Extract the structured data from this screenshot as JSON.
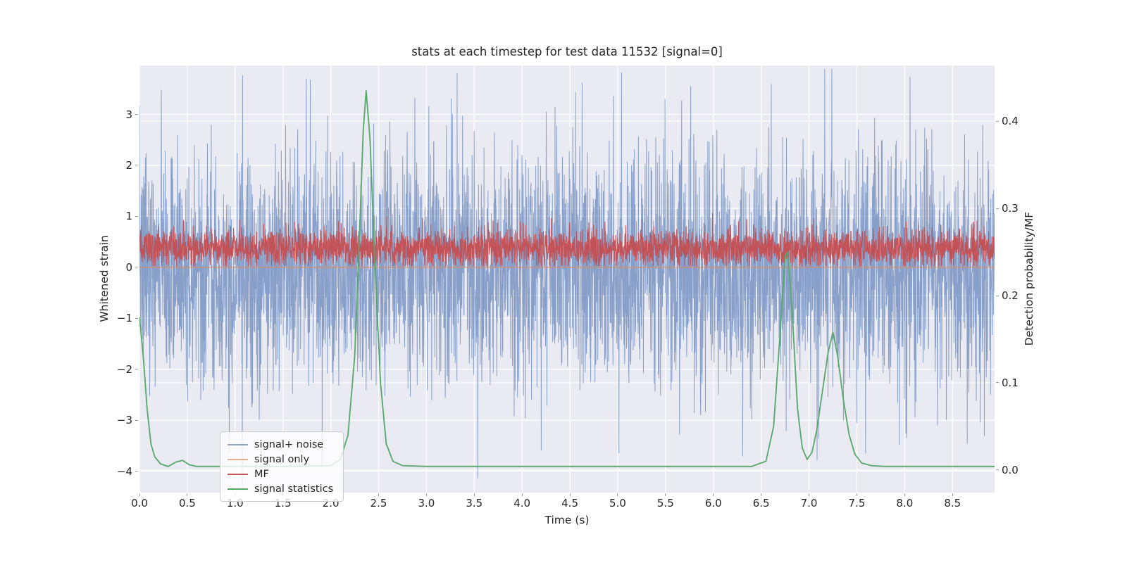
{
  "figure": {
    "background": "#ffffff"
  },
  "chart_data": {
    "type": "line",
    "title": "stats at each timestep for test data 11532 [signal=0]",
    "xlabel": "Time (s)",
    "ylabel_left": "Whitened strain",
    "ylabel_right": "Detection probability/MF",
    "xlim": [
      0,
      8.94
    ],
    "ylim_left": [
      -4.42,
      3.96
    ],
    "ylim_right": [
      -0.026,
      0.464
    ],
    "grid": true,
    "legend_position": "lower left",
    "series": [
      {
        "name": "signal+ noise",
        "color": "#4C72B0",
        "alpha": 0.62,
        "line_width": 1.0,
        "axis": "left",
        "kind": "noise",
        "mean": 0,
        "std": 1.15,
        "n": 3600,
        "seed": 7
      },
      {
        "name": "signal only",
        "color": "#DD8452",
        "alpha": 0.65,
        "line_width": 1.6,
        "axis": "left",
        "kind": "constant",
        "value": 0
      },
      {
        "name": "MF",
        "color": "#C44E52",
        "alpha": 0.95,
        "line_width": 1.1,
        "axis": "left",
        "kind": "noise",
        "mean": 0.38,
        "std": 0.18,
        "clip_min": 0.03,
        "n": 3600,
        "seed": 12
      },
      {
        "name": "signal statistics",
        "color": "#55A868",
        "alpha": 1.0,
        "line_width": 1.8,
        "axis": "right",
        "kind": "points",
        "points": [
          [
            0,
            0.175
          ],
          [
            0.04,
            0.13
          ],
          [
            0.08,
            0.07
          ],
          [
            0.12,
            0.03
          ],
          [
            0.16,
            0.015
          ],
          [
            0.22,
            0.007
          ],
          [
            0.3,
            0.004
          ],
          [
            0.38,
            0.009
          ],
          [
            0.45,
            0.011
          ],
          [
            0.52,
            0.006
          ],
          [
            0.6,
            0.004
          ],
          [
            0.8,
            0.004
          ],
          [
            1.2,
            0.004
          ],
          [
            1.6,
            0.004
          ],
          [
            2.0,
            0.005
          ],
          [
            2.1,
            0.012
          ],
          [
            2.18,
            0.04
          ],
          [
            2.25,
            0.13
          ],
          [
            2.3,
            0.27
          ],
          [
            2.34,
            0.39
          ],
          [
            2.37,
            0.435
          ],
          [
            2.41,
            0.38
          ],
          [
            2.46,
            0.24
          ],
          [
            2.52,
            0.1
          ],
          [
            2.58,
            0.03
          ],
          [
            2.65,
            0.01
          ],
          [
            2.75,
            0.005
          ],
          [
            3.0,
            0.004
          ],
          [
            3.5,
            0.004
          ],
          [
            4.0,
            0.004
          ],
          [
            4.5,
            0.004
          ],
          [
            5.0,
            0.004
          ],
          [
            5.5,
            0.004
          ],
          [
            6.0,
            0.004
          ],
          [
            6.4,
            0.004
          ],
          [
            6.55,
            0.01
          ],
          [
            6.63,
            0.05
          ],
          [
            6.7,
            0.16
          ],
          [
            6.75,
            0.245
          ],
          [
            6.78,
            0.25
          ],
          [
            6.83,
            0.17
          ],
          [
            6.88,
            0.07
          ],
          [
            6.93,
            0.025
          ],
          [
            6.98,
            0.012
          ],
          [
            7.03,
            0.02
          ],
          [
            7.08,
            0.045
          ],
          [
            7.14,
            0.09
          ],
          [
            7.2,
            0.135
          ],
          [
            7.25,
            0.158
          ],
          [
            7.3,
            0.13
          ],
          [
            7.36,
            0.08
          ],
          [
            7.42,
            0.04
          ],
          [
            7.48,
            0.018
          ],
          [
            7.55,
            0.008
          ],
          [
            7.65,
            0.005
          ],
          [
            7.8,
            0.004
          ],
          [
            8.2,
            0.004
          ],
          [
            8.6,
            0.004
          ],
          [
            8.94,
            0.004
          ]
        ]
      }
    ]
  },
  "axes": {
    "background": "#eaeaf2",
    "grid_color": "#ffffff",
    "text_color": "#262626",
    "x_ticks": {
      "values": [
        0,
        0.5,
        1.0,
        1.5,
        2.0,
        2.5,
        3.0,
        3.5,
        4.0,
        4.5,
        5.0,
        5.5,
        6.0,
        6.5,
        7.0,
        7.5,
        8.0,
        8.5
      ],
      "labels": [
        "0.0",
        "0.5",
        "1.0",
        "1.5",
        "2.0",
        "2.5",
        "3.0",
        "3.5",
        "4.0",
        "4.5",
        "5.0",
        "5.5",
        "6.0",
        "6.5",
        "7.0",
        "7.5",
        "8.0",
        "8.5"
      ]
    },
    "y_ticks_left": {
      "values": [
        -4,
        -3,
        -2,
        -1,
        0,
        1,
        2,
        3
      ],
      "labels": [
        "−4",
        "−3",
        "−2",
        "−1",
        "0",
        "1",
        "2",
        "3"
      ]
    },
    "y_ticks_right": {
      "values": [
        0,
        0.1,
        0.2,
        0.3,
        0.4
      ],
      "labels": [
        "0.0",
        "0.1",
        "0.2",
        "0.3",
        "0.4"
      ]
    }
  }
}
